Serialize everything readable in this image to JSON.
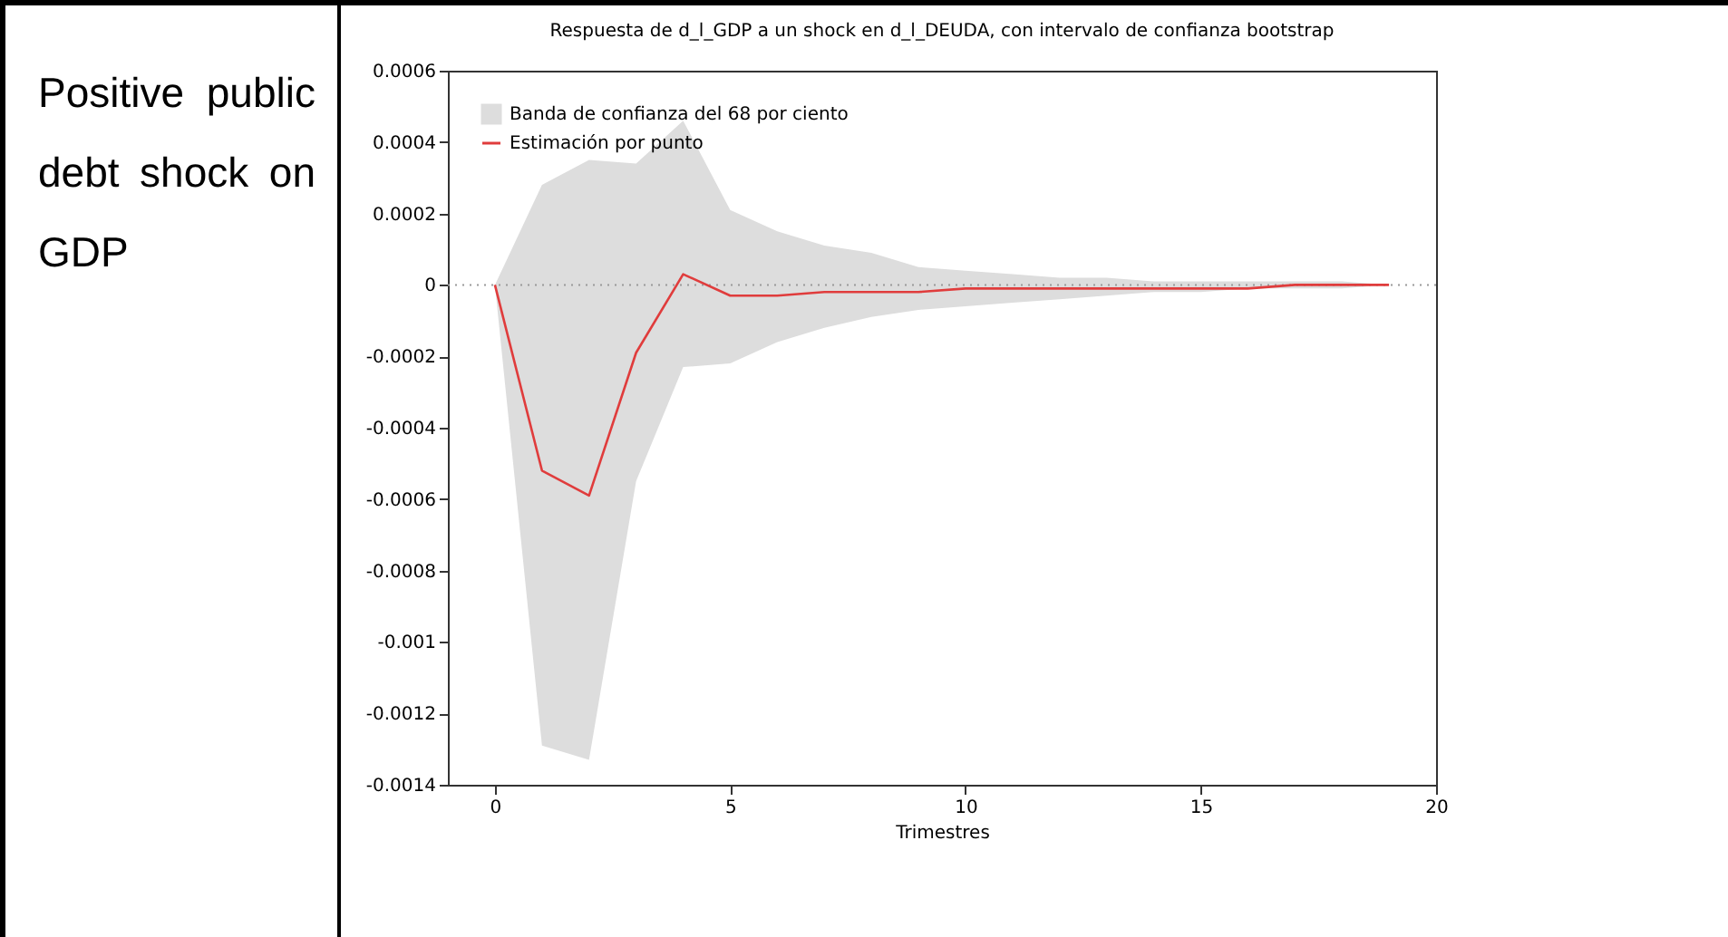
{
  "chart_data": {
    "type": "line",
    "title": "Respuesta de d_l_GDP a un shock en d_l_DEUDA, con intervalo de confianza bootstrap",
    "xlabel": "Trimestres",
    "annotations": [
      "Positive public debt shock on GDP"
    ],
    "x": [
      0,
      1,
      2,
      3,
      4,
      5,
      6,
      7,
      8,
      9,
      10,
      11,
      12,
      13,
      14,
      15,
      16,
      17,
      18,
      19
    ],
    "series": [
      {
        "name": "Banda de confianza del 68 por ciento",
        "type": "area",
        "color": "#dddddd",
        "values": [
          null,
          null,
          null,
          null,
          null,
          null,
          null,
          null,
          null,
          null,
          null,
          null,
          null,
          null,
          null,
          null,
          null,
          null,
          null,
          null
        ],
        "lower": [
          0,
          -0.00129,
          -0.00133,
          -0.00055,
          -0.00023,
          -0.00022,
          -0.00016,
          -0.00012,
          -9e-05,
          -7e-05,
          -6e-05,
          -5e-05,
          -4e-05,
          -3e-05,
          -2e-05,
          -2e-05,
          -1e-05,
          -1e-05,
          -1e-05,
          0
        ],
        "upper": [
          0,
          0.00028,
          0.00035,
          0.00034,
          0.00046,
          0.00021,
          0.00015,
          0.00011,
          9e-05,
          5e-05,
          4e-05,
          3e-05,
          2e-05,
          2e-05,
          1e-05,
          1e-05,
          1e-05,
          1e-05,
          1e-05,
          0
        ]
      },
      {
        "name": "Estimación por punto",
        "type": "line",
        "color": "#e03c3c",
        "values": [
          0,
          -0.00052,
          -0.00059,
          -0.00019,
          3e-05,
          -3e-05,
          -3e-05,
          -2e-05,
          -2e-05,
          -2e-05,
          -1e-05,
          -1e-05,
          -1e-05,
          -1e-05,
          -1e-05,
          -1e-05,
          -1e-05,
          0,
          0,
          0
        ]
      }
    ],
    "ref_lines": [
      {
        "axis": "y",
        "value": 0,
        "color": "#999999",
        "line_style": "dotted"
      }
    ],
    "xlim": [
      -1,
      20
    ],
    "xticks": [
      0,
      5,
      10,
      15,
      20
    ],
    "ylim": [
      -0.0014,
      0.0006
    ],
    "yticks": [
      -0.0014,
      -0.0012,
      -0.001,
      -0.0008,
      -0.0006,
      -0.0004,
      -0.0002,
      0,
      0.0002,
      0.0004,
      0.0006
    ],
    "grid": false,
    "legend": "top left",
    "marker": "none",
    "line_style": "solid"
  }
}
